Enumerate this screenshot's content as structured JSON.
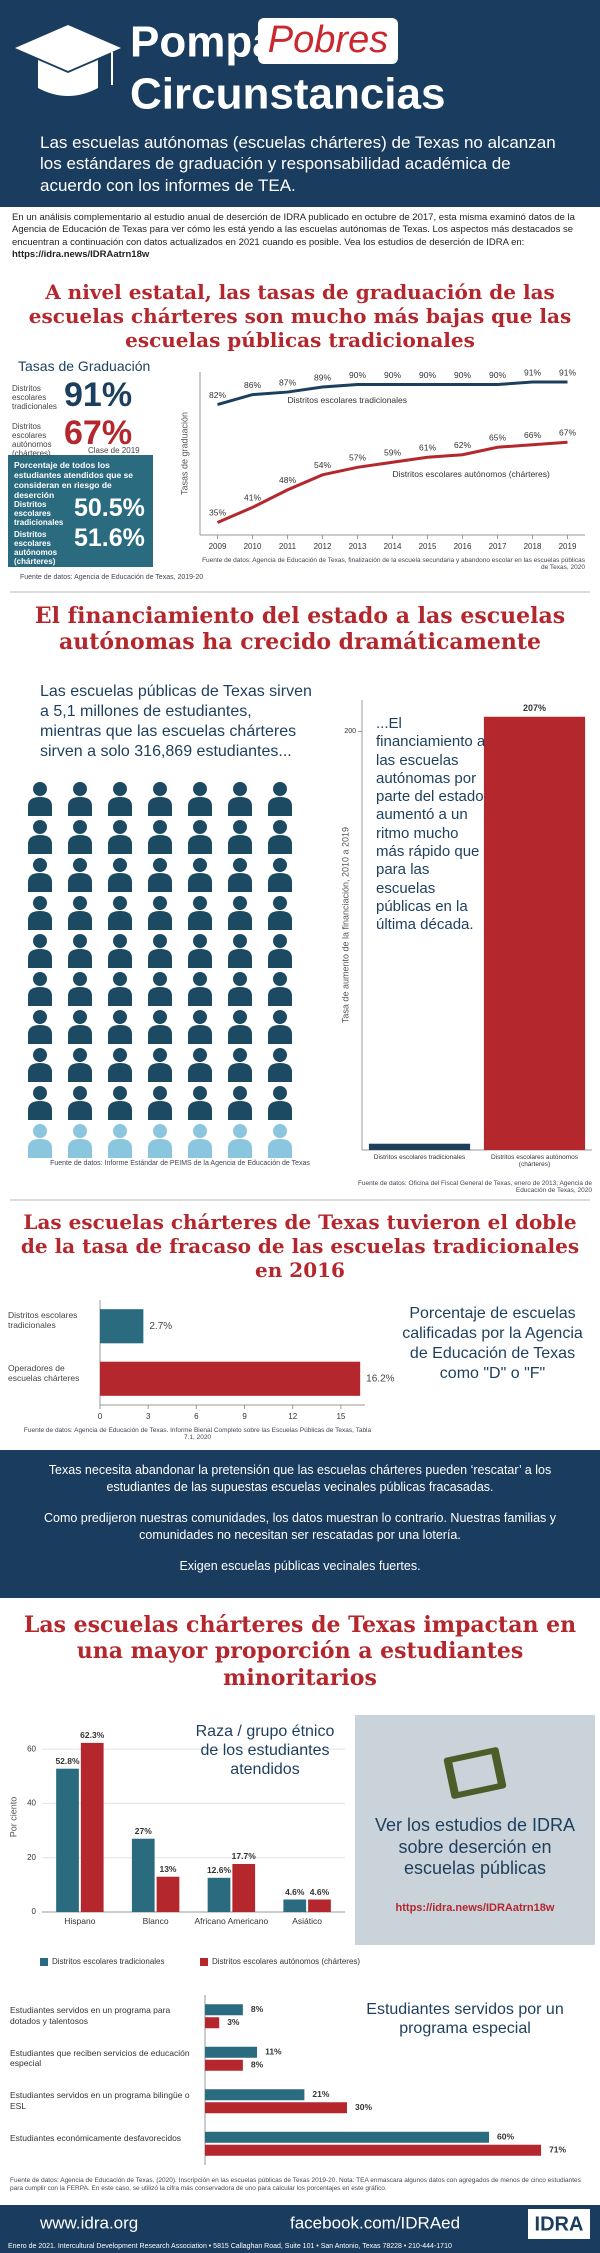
{
  "header": {
    "title_line1": "Pompa &",
    "title_highlight": "Pobres",
    "title_line2": "Circunstancias",
    "subtitle": "Las escuelas autónomas (escuelas chárteres) de Texas no alcanzan los estándares de graduación y responsabilidad académica de acuerdo con los informes de TEA."
  },
  "intro": {
    "text": "En un análisis complementario al estudio anual de deserción de IDRA publicado en octubre de 2017, esta misma examinó datos de la Agencia de Educación de Texas para ver cómo les está yendo a las escuelas autónomas de Texas. Los aspectos más destacados se encuentran a continuación con datos actualizados en 2021 cuando es posible. Vea los estudios de deserción de IDRA en:",
    "link": "https://idra.news/IDRAatrn18w"
  },
  "headings": [
    "A nivel estatal, las tasas de graduación de las escuelas chárteres son mucho más bajas que las escuelas públicas tradicionales",
    "El financiamiento del estado a las escuelas autónomas ha crecido dramáticamente",
    "Las escuelas chárteres de Texas tuvieron el doble de la tasa de fracaso de las escuelas tradicionales en 2016",
    "Las escuelas chárteres de Texas impactan en una mayor proporción a estudiantes minoritarios"
  ],
  "graduation_stats": {
    "title": "Tasas de Graduación",
    "rows": [
      {
        "label": "Distritos escolares tradicionales",
        "value": "91%"
      },
      {
        "label": "Distritos escolares autónomos (chárteres)",
        "value": "67%"
      }
    ],
    "class": "Clase de 2019",
    "risk_title": "Porcentaje de todos los estudiantes atendidos que se consideran en riesgo de deserción",
    "risk_rows": [
      {
        "label": "Distritos escolares tradicionales",
        "value": "50.5%"
      },
      {
        "label": "Distritos escolares autónomos (chárteres)",
        "value": "51.6%"
      }
    ],
    "source": "Fuente de datos: Agencia de Educación de Texas, 2019-20"
  },
  "funding_text": "Las escuelas públicas de Texas sirven a 5,1 millones de estudiantes, mientras que las escuelas chárteres sirven a solo 316,869 estudiantes...",
  "icons_source": "Fuente de datos: Informe Estándar de PEIMS de la Agencia de Educación de Texas",
  "callout": [
    "Texas necesita abandonar la pretensión que las escuelas chárteres pueden ‘rescatar’ a los estudiantes de las supuestas escuelas vecinales públicas fracasadas.",
    "Como predijeron nuestras comunidades, los datos muestran lo contrario. Nuestras familias y comunidades no necesitan ser rescatadas por una lotería.",
    "Exigen escuelas públicas vecinales fuertes."
  ],
  "idra_box": {
    "text": "Ver los estudios de IDRA sobre deserción en escuelas públicas",
    "link": "https://idra.news/IDRAatrn18w"
  },
  "footer": {
    "website": "www.idra.org",
    "facebook": "facebook.com/IDRAed",
    "logo": "IDRA",
    "note": "Enero de 2021. Intercultural Development Research Association • 5815 Callaghan Road, Suite 101 • San Antonio, Texas 78228 • 210-444-1710"
  },
  "chart_data": [
    {
      "type": "line",
      "y_label": "Tasas de graduación",
      "x": [
        2009,
        2010,
        2011,
        2012,
        2013,
        2014,
        2015,
        2016,
        2017,
        2018,
        2019
      ],
      "xlim": [
        2008.5,
        2019.5
      ],
      "xticks": [
        2009,
        2010,
        2011,
        2012,
        2013,
        2014,
        2015,
        2016,
        2017,
        2018,
        2019
      ],
      "ylim": [
        30,
        95
      ],
      "series": [
        {
          "name": "Distritos escolares tradicionales",
          "color": "#1d3f5e",
          "values": [
            82,
            86,
            87,
            89,
            90,
            90,
            90,
            90,
            90,
            91,
            91
          ],
          "value_labels": [
            "82%",
            "86%",
            "87%",
            "89%",
            "90%",
            "90%",
            "90%",
            "90%",
            "90%",
            "91%",
            "91%"
          ]
        },
        {
          "name": "Distritos escolares autónomos (chárteres)",
          "color": "#b3272d",
          "values": [
            35,
            41,
            48,
            54,
            57,
            59,
            61,
            62,
            65,
            66,
            67
          ],
          "value_labels": [
            "35%",
            "41%",
            "48%",
            "54%",
            "57%",
            "59%",
            "61%",
            "62%",
            "65%",
            "66%",
            "67%"
          ]
        }
      ],
      "source": "Fuente de datos: Agencia de Educación de Texas, finalización de la escuela secundaria y abandono escolar en las escuelas públicas de Texas, 2020"
    },
    {
      "type": "bar",
      "y_label": "Tasa de aumento de la financiación, 2010 a 2019",
      "categories": [
        "Distritos escolares tradicionales",
        "Distritos escolares autónomos (chárteres)"
      ],
      "values": [
        3,
        207
      ],
      "value_labels": [
        null,
        "207%"
      ],
      "colors": [
        "#1d3f5e",
        "#b3272d"
      ],
      "ylim": [
        0,
        215
      ],
      "yticks": [
        200
      ],
      "annotation": "...El financiamiento a las escuelas autónomas por parte del estado aumentó a un ritmo mucho más rápido que para las escuelas públicas en la última década.",
      "source": "Fuente de datos: Oficina del Fiscal General de Texas, enero de 2013; Agencia de Educación de Texas, 2020"
    },
    {
      "type": "hbar",
      "categories": [
        "Distritos escolares tradicionales",
        "Operadores de escuelas chárteres"
      ],
      "values": [
        2.7,
        16.2
      ],
      "value_labels": [
        "2.7%",
        "16.2%"
      ],
      "colors": [
        "#2b6b80",
        "#b3272d"
      ],
      "xlim": [
        0,
        16.5
      ],
      "xticks": [
        0,
        3,
        6,
        9,
        12,
        15
      ],
      "annotation": "Porcentaje de escuelas calificadas por la Agencia de Educación de Texas como \"D\" o \"F\"",
      "source": "Fuente de datos: Agencia de Educación de Texas. Informe Bienal Completo sobre las Escuelas Públicas de Texas, Tabla 7.1, 2020"
    },
    {
      "type": "grouped_bar",
      "title": "Raza / grupo étnico de los estudiantes atendidos",
      "y_label": "Por ciento",
      "categories": [
        "Hispano",
        "Blanco",
        "Africano Americano",
        "Asiático"
      ],
      "ylim": [
        0,
        70
      ],
      "yticks": [
        0,
        20,
        40,
        60
      ],
      "series": [
        {
          "name": "Distritos escolares tradicionales",
          "color": "#2b6b80",
          "values": [
            52.8,
            27,
            12.6,
            4.6
          ],
          "value_labels": [
            "52.8%",
            "27%",
            "12.6%",
            "4.6%"
          ]
        },
        {
          "name": "Distritos escolares autónomos (chárteres)",
          "color": "#b3272d",
          "values": [
            62.3,
            13,
            17.7,
            4.6
          ],
          "value_labels": [
            "62.3%",
            "13%",
            "17.7%",
            "4.6%"
          ]
        }
      ]
    },
    {
      "type": "grouped_hbar",
      "title": "Estudiantes servidos por un programa especial",
      "categories": [
        "Estudiantes servidos en un programa para dotados y talentosos",
        "Estudiantes que reciben servicios de educación especial",
        "Estudiantes servidos en un programa bilingüe o ESL",
        "Estudiantes económicamente desfavorecidos"
      ],
      "xlim": [
        0,
        75
      ],
      "series": [
        {
          "color": "#2b6b80",
          "values": [
            8,
            11,
            21,
            60
          ],
          "value_labels": [
            "8%",
            "11%",
            "21%",
            "60%"
          ]
        },
        {
          "color": "#b3272d",
          "values": [
            3,
            8,
            30,
            71
          ],
          "value_labels": [
            "3%",
            "8%",
            "30%",
            "71%"
          ]
        }
      ],
      "source": "Fuente de datos: Agencia de Educación de Texas. (2020). Inscripción en las escuelas públicas de Texas 2019-20. Nota: TEA enmascara algunos datos con agregados de menos de cinco estudiantes para cumplir con la FERPA. En este caso, se utilizó la cifra más conservadora de uno para calcular los porcentajes en este gráfico."
    }
  ]
}
